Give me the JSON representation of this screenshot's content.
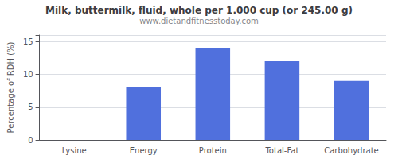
{
  "chart_data": {
    "type": "bar",
    "title": "Milk, buttermilk, fluid, whole per 1.000 cup (or 245.00 g)",
    "subtitle": "www.dietandfitnesstoday.com",
    "ylabel": "Percentage of RDH (%)",
    "categories": [
      "Lysine",
      "Energy",
      "Protein",
      "Total-Fat",
      "Carbohydrate"
    ],
    "values": [
      0.0,
      8.0,
      14.0,
      12.0,
      9.0
    ],
    "ylim": [
      0,
      16
    ],
    "yticks": [
      0,
      5,
      10,
      15
    ],
    "grid": true
  }
}
